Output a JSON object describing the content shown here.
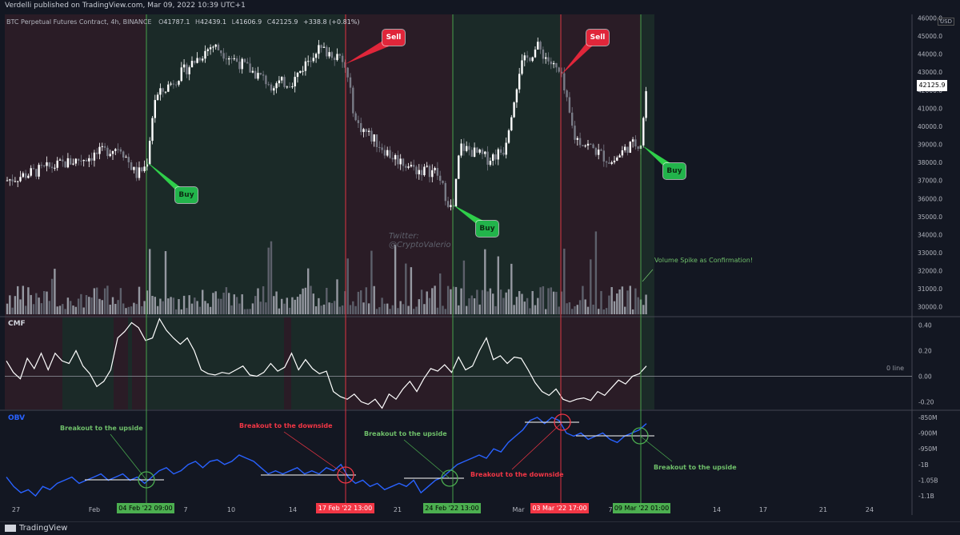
{
  "header": {
    "published": "Verdelli published on TradingView.com, Mar 09, 2022 10:39 UTC+1"
  },
  "legend": {
    "symbol": "BTC Perpetual Futures Contract, 4h, BINANCE",
    "open_label": "O",
    "open": "41787.1",
    "high_label": "H",
    "high": "42439.1",
    "low_label": "L",
    "low": "41606.9",
    "close_label": "C",
    "close": "42125.9",
    "change": "+338.8 (+0.81%)"
  },
  "currency": "USD",
  "last_price": "42125.9",
  "watermark": [
    "Twitter:",
    "@CryptoValerio"
  ],
  "callouts": {
    "buy_1": "Buy",
    "buy_2": "Buy",
    "buy_3": "Buy",
    "sell_1": "Sell",
    "sell_2": "Sell"
  },
  "annotations": {
    "volume_note": "Volume Spike as Confirmation!",
    "cmf_zero": "0 line",
    "obv_1": "Breakout to the upside",
    "obv_2": "Breakout to the downside",
    "obv_3": "Breakout to the upside",
    "obv_4": "Breakout to the downside",
    "obv_5": "Breakout to the upside"
  },
  "indicators": {
    "cmf": "CMF",
    "obv": "OBV"
  },
  "date_tags": {
    "tag_1": "04 Feb '22   09:00",
    "tag_2": "17 Feb '22   13:00",
    "tag_3": "24 Feb '22   13:00",
    "tag_4": "03 Mar '22   17:00",
    "tag_5": "09 Mar '22   01:00"
  },
  "footer": {
    "logo": "TradingView"
  },
  "colors": {
    "background": "#131722",
    "sell_zone": "#2a1c26",
    "buy_zone": "#1b2a28",
    "buy_line": "#4caf50",
    "sell_line": "#f23645",
    "obv_line": "#2962ff",
    "buy_tag": "#22b44b",
    "sell_tag": "#f23645"
  },
  "chart_data": [
    {
      "type": "candlestick",
      "title": "BTC Perpetual Futures Contract, 4h, BINANCE",
      "ylabel": "USD",
      "ylim": [
        29500,
        46200
      ],
      "y_ticks": [
        30000,
        31000,
        32000,
        33000,
        34000,
        35000,
        36000,
        37000,
        38000,
        39000,
        40000,
        41000,
        42000,
        43000,
        44000,
        45000,
        46000
      ],
      "y_tick_labels": [
        "30000.0",
        "31000.0",
        "32000.0",
        "33000.0",
        "34000.0",
        "35000.0",
        "36000.0",
        "37000.0",
        "38000.0",
        "39000.0",
        "40000.0",
        "41000.0",
        "42000.0",
        "43000.0",
        "44000.0",
        "45000.0",
        "46000.0"
      ],
      "x_tick_labels": [
        "27",
        "Feb",
        "7",
        "10",
        "14",
        "21",
        "Mar",
        "7",
        "14",
        "17",
        "21",
        "24"
      ],
      "close_path": [
        [
          "27 Jan",
          37000
        ],
        [
          "29 Jan",
          37700
        ],
        [
          "31 Jan",
          38300
        ],
        [
          "02 Feb",
          38900
        ],
        [
          "03 Feb",
          37300
        ],
        [
          "04 Feb 09:00",
          37800
        ],
        [
          "05 Feb",
          41500
        ],
        [
          "07 Feb",
          43500
        ],
        [
          "09 Feb",
          44500
        ],
        [
          "10 Feb",
          43800
        ],
        [
          "12 Feb",
          42300
        ],
        [
          "14 Feb",
          42500
        ],
        [
          "15 Feb",
          44300
        ],
        [
          "16 Feb",
          44000
        ],
        [
          "17 Feb 13:00",
          43200
        ],
        [
          "18 Feb",
          40200
        ],
        [
          "20 Feb",
          38400
        ],
        [
          "22 Feb",
          37600
        ],
        [
          "23 Feb",
          37500
        ],
        [
          "24 Feb 13:00",
          35200
        ],
        [
          "25 Feb",
          38900
        ],
        [
          "27 Feb",
          38200
        ],
        [
          "28 Feb",
          38700
        ],
        [
          "01 Mar",
          43300
        ],
        [
          "02 Mar",
          44400
        ],
        [
          "03 Mar 17:00",
          42800
        ],
        [
          "04 Mar",
          39400
        ],
        [
          "06 Mar",
          38800
        ],
        [
          "07 Mar",
          38000
        ],
        [
          "08 Mar",
          38900
        ],
        [
          "09 Mar 01:00",
          39100
        ],
        [
          "09 Mar 10:00",
          42125.9
        ]
      ],
      "signals": [
        {
          "label": "Buy",
          "date": "04 Feb '22 09:00"
        },
        {
          "label": "Sell",
          "date": "17 Feb '22 13:00"
        },
        {
          "label": "Buy",
          "date": "24 Feb '22 13:00"
        },
        {
          "label": "Sell",
          "date": "03 Mar '22 17:00"
        },
        {
          "label": "Buy",
          "date": "09 Mar '22 01:00"
        }
      ]
    },
    {
      "type": "line",
      "title": "CMF",
      "ylim": [
        -0.26,
        0.46
      ],
      "y_ticks": [
        -0.2,
        0.0,
        0.2,
        0.4
      ],
      "y_tick_labels": [
        "-0.20",
        "0.00",
        "0.20",
        "0.40"
      ],
      "reference_line": {
        "value": 0,
        "label": "0 line"
      },
      "series": [
        {
          "values": [
            0.12,
            0.03,
            -0.02,
            0.14,
            0.06,
            0.18,
            0.05,
            0.18,
            0.12,
            0.1,
            0.2,
            0.08,
            0.02,
            -0.08,
            -0.04,
            0.05,
            0.3,
            0.35,
            0.42,
            0.38,
            0.28,
            0.3,
            0.45,
            0.36,
            0.3,
            0.25,
            0.3,
            0.2,
            0.05,
            0.02,
            0.01,
            0.03,
            0.02,
            0.05,
            0.08,
            0.01,
            0.0,
            0.03,
            0.1,
            0.04,
            0.07,
            0.18,
            0.05,
            0.13,
            0.06,
            0.02,
            0.04,
            -0.12,
            -0.16,
            -0.18,
            -0.14,
            -0.2,
            -0.22,
            -0.18,
            -0.25,
            -0.14,
            -0.18,
            -0.1,
            -0.04,
            -0.12,
            -0.02,
            0.06,
            0.04,
            0.09,
            0.03,
            0.15,
            0.05,
            0.08,
            0.2,
            0.3,
            0.13,
            0.16,
            0.1,
            0.15,
            0.14,
            0.05,
            -0.05,
            -0.12,
            -0.15,
            -0.1,
            -0.18,
            -0.2,
            -0.18,
            -0.17,
            -0.19,
            -0.12,
            -0.15,
            -0.09,
            -0.03,
            -0.06,
            0.0,
            0.02,
            0.08
          ]
        }
      ]
    },
    {
      "type": "line",
      "title": "OBV",
      "ylim": [
        -1.12,
        -0.83
      ],
      "y_ticks": [
        -0.85,
        -0.9,
        -0.95,
        -1.0,
        -1.05,
        -1.1
      ],
      "y_tick_labels": [
        "-850M",
        "-900M",
        "-950M",
        "-1B",
        "-1.05B",
        "-1.1B"
      ],
      "series": [
        {
          "values": [
            -1.04,
            -1.07,
            -1.09,
            -1.08,
            -1.1,
            -1.07,
            -1.08,
            -1.06,
            -1.05,
            -1.04,
            -1.06,
            -1.05,
            -1.04,
            -1.03,
            -1.05,
            -1.04,
            -1.03,
            -1.05,
            -1.04,
            -1.06,
            -1.04,
            -1.02,
            -1.01,
            -1.03,
            -1.02,
            -1.0,
            -0.99,
            -1.01,
            -0.99,
            -0.985,
            -1.0,
            -0.99,
            -0.97,
            -0.98,
            -0.99,
            -1.01,
            -1.03,
            -1.02,
            -1.03,
            -1.02,
            -1.01,
            -1.03,
            -1.02,
            -1.03,
            -1.01,
            -1.02,
            -1.0,
            -1.04,
            -1.06,
            -1.05,
            -1.07,
            -1.06,
            -1.08,
            -1.07,
            -1.06,
            -1.07,
            -1.05,
            -1.09,
            -1.07,
            -1.05,
            -1.04,
            -1.02,
            -1.0,
            -0.99,
            -0.98,
            -0.97,
            -0.98,
            -0.95,
            -0.96,
            -0.93,
            -0.91,
            -0.89,
            -0.86,
            -0.85,
            -0.87,
            -0.85,
            -0.86,
            -0.9,
            -0.91,
            -0.9,
            -0.92,
            -0.91,
            -0.9,
            -0.92,
            -0.93,
            -0.91,
            -0.9,
            -0.89,
            -0.87
          ]
        }
      ],
      "breakouts": [
        {
          "label": "Breakout to the upside",
          "value": -1.05
        },
        {
          "label": "Breakout to the downside",
          "value": -1.04
        },
        {
          "label": "Breakout to the upside",
          "value": -1.05
        },
        {
          "label": "Breakout to the downside",
          "value": -0.87
        },
        {
          "label": "Breakout to the upside",
          "value": -0.9
        }
      ]
    }
  ]
}
